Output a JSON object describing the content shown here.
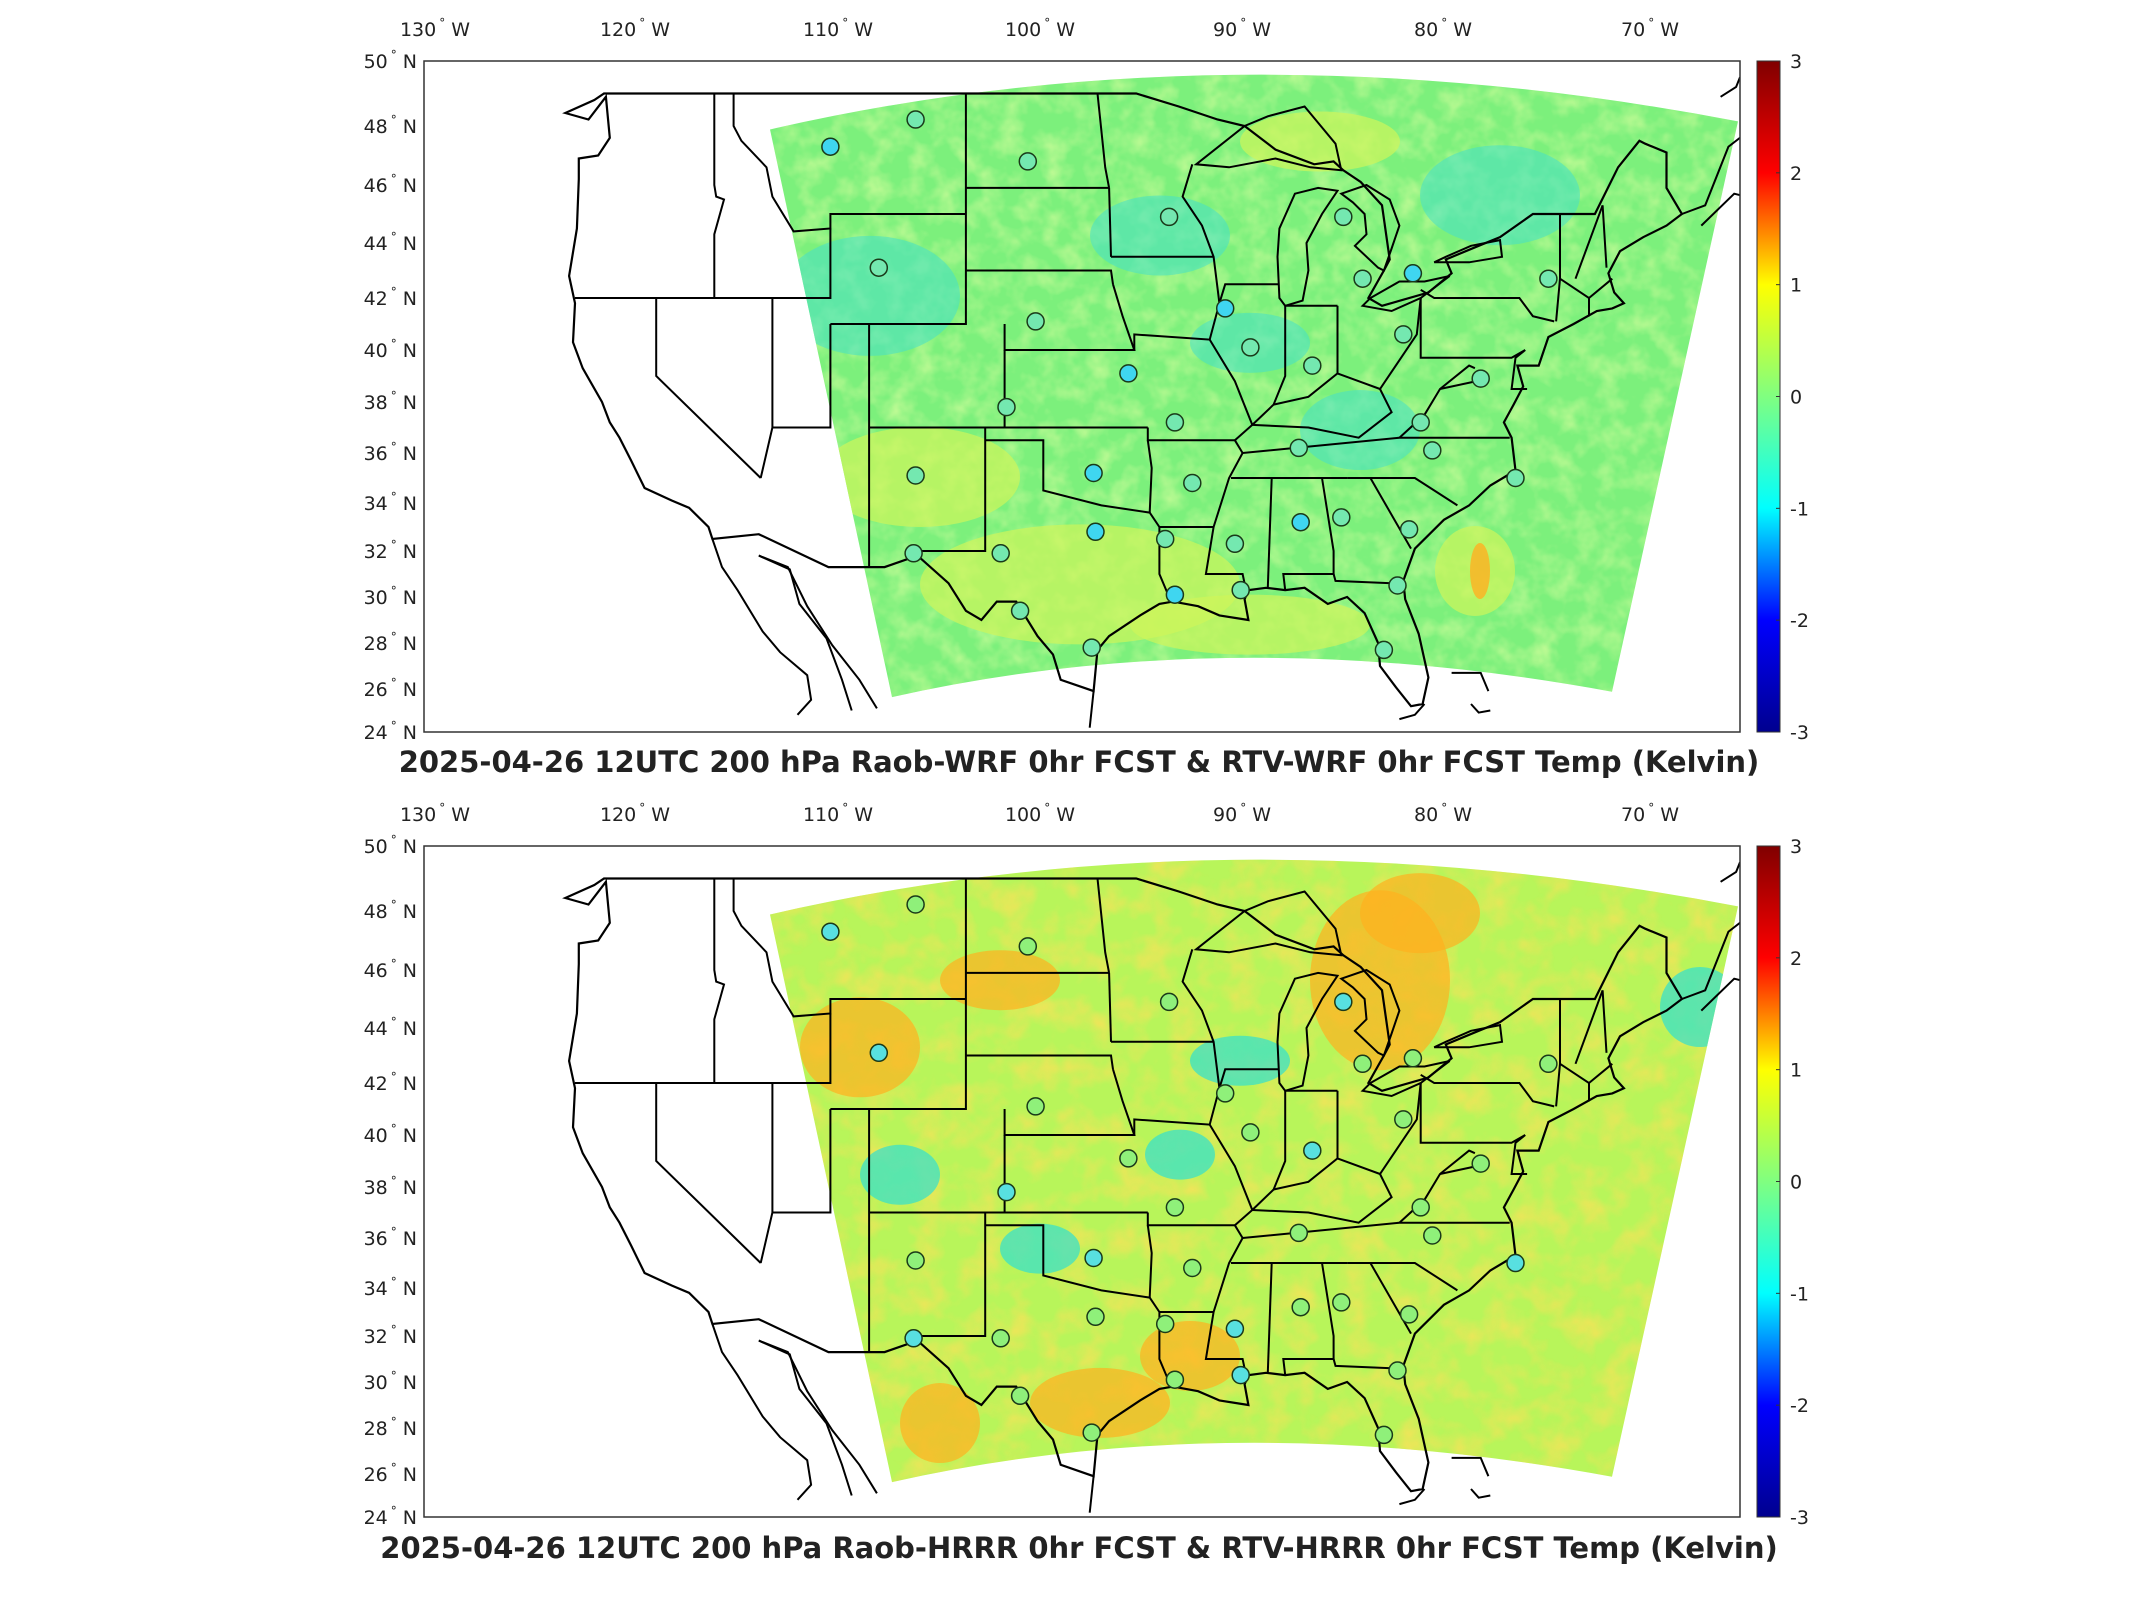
{
  "figure": {
    "panels": [
      {
        "title": "2025-04-26 12UTC 200 hPa Raob-WRF 0hr FCST & RTV-WRF 0hr FCST Temp (Kelvin)",
        "variant": "wrf"
      },
      {
        "title": "2025-04-26 12UTC 200 hPa Raob-HRRR 0hr FCST & RTV-HRRR 0hr FCST Temp (Kelvin)",
        "variant": "hrrr"
      }
    ],
    "lon_ticks": [
      "130",
      "120",
      "110",
      "100",
      "90",
      "80",
      "70"
    ],
    "lon_suffix": "W",
    "lat_ticks": [
      "50",
      "48",
      "46",
      "44",
      "42",
      "40",
      "38",
      "36",
      "34",
      "32",
      "30",
      "28",
      "26",
      "24"
    ],
    "lat_suffix": "N",
    "degree_symbol": "°",
    "colorbar": {
      "labels": [
        "3",
        "2",
        "1",
        "0",
        "-1",
        "-2",
        "-3"
      ],
      "colormap": "jet",
      "range": [
        -3,
        3
      ],
      "colors": [
        "#00008f",
        "#0000ff",
        "#00ffff",
        "#80ff80",
        "#ffff00",
        "#ff0000",
        "#800000"
      ]
    },
    "stations": [
      {
        "lon": -111.0,
        "lat": 47.3
      },
      {
        "lon": -106.6,
        "lat": 48.2
      },
      {
        "lon": -100.8,
        "lat": 46.8
      },
      {
        "lon": -93.5,
        "lat": 44.9
      },
      {
        "lon": -84.5,
        "lat": 44.9
      },
      {
        "lon": -80.9,
        "lat": 42.9
      },
      {
        "lon": -83.5,
        "lat": 42.7
      },
      {
        "lon": -73.9,
        "lat": 42.7
      },
      {
        "lon": -108.5,
        "lat": 43.1
      },
      {
        "lon": -100.4,
        "lat": 41.1
      },
      {
        "lon": -90.6,
        "lat": 41.6
      },
      {
        "lon": -89.3,
        "lat": 40.1
      },
      {
        "lon": -86.1,
        "lat": 39.4
      },
      {
        "lon": -81.4,
        "lat": 40.6
      },
      {
        "lon": -77.4,
        "lat": 38.9
      },
      {
        "lon": -95.6,
        "lat": 39.1
      },
      {
        "lon": -101.9,
        "lat": 37.8
      },
      {
        "lon": -80.5,
        "lat": 37.2
      },
      {
        "lon": -93.2,
        "lat": 37.2
      },
      {
        "lon": -106.6,
        "lat": 35.1
      },
      {
        "lon": -97.4,
        "lat": 35.2
      },
      {
        "lon": -92.3,
        "lat": 34.8
      },
      {
        "lon": -86.8,
        "lat": 36.2
      },
      {
        "lon": -79.9,
        "lat": 36.1
      },
      {
        "lon": -75.6,
        "lat": 35.0
      },
      {
        "lon": -86.7,
        "lat": 33.2
      },
      {
        "lon": -84.6,
        "lat": 33.4
      },
      {
        "lon": -81.1,
        "lat": 32.9
      },
      {
        "lon": -90.1,
        "lat": 32.3
      },
      {
        "lon": -93.7,
        "lat": 32.5
      },
      {
        "lon": -97.3,
        "lat": 32.8
      },
      {
        "lon": -102.2,
        "lat": 31.9
      },
      {
        "lon": -106.7,
        "lat": 31.9
      },
      {
        "lon": -101.2,
        "lat": 29.4
      },
      {
        "lon": -97.5,
        "lat": 27.8
      },
      {
        "lon": -93.2,
        "lat": 30.1
      },
      {
        "lon": -89.8,
        "lat": 30.3
      },
      {
        "lon": -81.7,
        "lat": 30.5
      },
      {
        "lon": -82.4,
        "lat": 27.7
      }
    ]
  }
}
